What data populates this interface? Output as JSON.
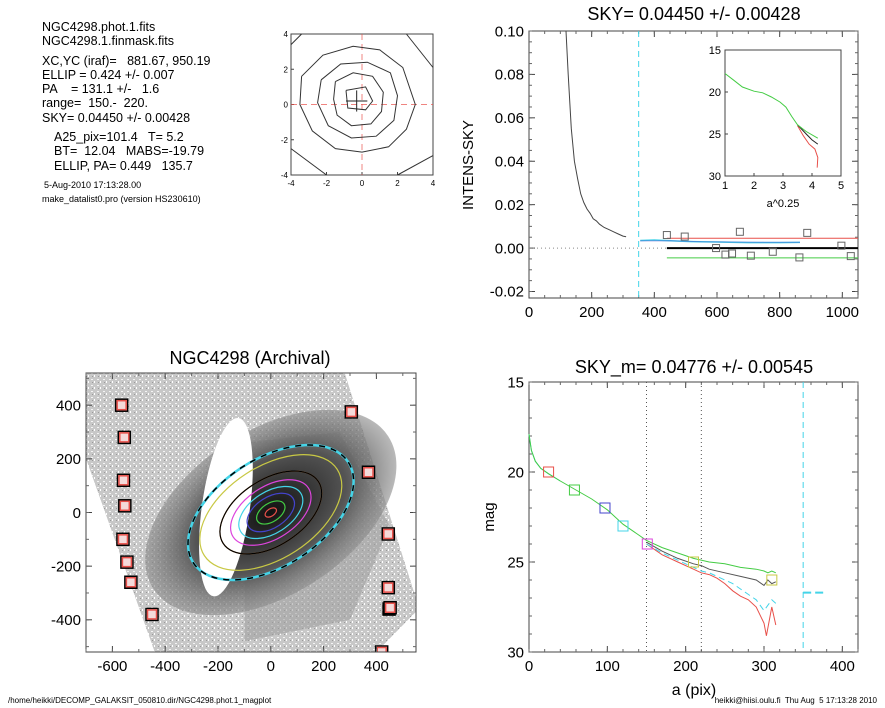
{
  "info_panel": {
    "files": [
      "NGC4298.phot.1.fits",
      "NGC4298.1.finmask.fits"
    ],
    "params": [
      "XC,YC (iraf)=   881.67, 950.19",
      "ELLIP = 0.424 +/- 0.007",
      "PA    = 131.1 +/-   1.6",
      "range=  150.-  220.",
      "SKY= 0.04450 +/- 0.00428"
    ],
    "results": [
      "A25_pix=101.4   T= 5.2",
      "BT=  12.04   MABS=-19.79",
      "ELLIP, PA= 0.449   135.7"
    ],
    "date": "5-Aug-2010 17:13:28.00",
    "program": "make_datalist0.pro (version HS230610)"
  },
  "footer": {
    "path": "/home/heikki/DECOMP_GALAKSIT_050810.dir/NGC4298.phot.1_magplot",
    "user_stamp": "heikki@hiisi.oulu.fi  Thu Aug  5 17:13:28 2010"
  },
  "colors": {
    "red": "#e8504a",
    "green": "#44cc44",
    "cyan": "#44d4e8",
    "blue": "#4444cc",
    "magenta": "#dd44dd",
    "yellow": "#c8c844",
    "orange": "#e88a30",
    "gray": "#555555",
    "black": "#000000"
  },
  "chart_data": [
    {
      "id": "center-contour",
      "type": "line",
      "title": "",
      "xlim": [
        -4,
        4
      ],
      "ylim": [
        -4,
        4
      ],
      "xticks": [
        "-4",
        "-2",
        "0",
        "2",
        "4"
      ],
      "yticks": [
        "-4",
        "-2",
        "0",
        "2",
        "4"
      ],
      "contours": [
        [
          [
            -0.9,
            0.8
          ],
          [
            0.2,
            1.0
          ],
          [
            0.6,
            0.2
          ],
          [
            0.2,
            -0.3
          ],
          [
            -0.8,
            -0.2
          ],
          [
            -0.9,
            0.8
          ]
        ],
        [
          [
            -1.5,
            1.3
          ],
          [
            -0.5,
            1.8
          ],
          [
            0.6,
            1.6
          ],
          [
            1.2,
            0.7
          ],
          [
            1.1,
            -0.4
          ],
          [
            0.5,
            -1.1
          ],
          [
            -0.6,
            -1.2
          ],
          [
            -1.4,
            -0.6
          ],
          [
            -1.6,
            0.3
          ],
          [
            -1.5,
            1.3
          ]
        ],
        [
          [
            -2.3,
            1.4
          ],
          [
            -1.2,
            2.3
          ],
          [
            0.3,
            2.4
          ],
          [
            1.6,
            1.8
          ],
          [
            2.0,
            0.5
          ],
          [
            1.8,
            -0.9
          ],
          [
            0.8,
            -1.8
          ],
          [
            -0.6,
            -1.9
          ],
          [
            -1.9,
            -1.2
          ],
          [
            -2.5,
            0.1
          ],
          [
            -2.3,
            1.4
          ]
        ],
        [
          [
            -3.4,
            1.6
          ],
          [
            -2.2,
            2.8
          ],
          [
            -0.5,
            3.3
          ],
          [
            1.0,
            3.1
          ],
          [
            2.3,
            2.1
          ],
          [
            3.0,
            0.0
          ],
          [
            2.5,
            -1.4
          ],
          [
            1.5,
            -2.4
          ],
          [
            0.0,
            -2.7
          ],
          [
            -1.5,
            -2.5
          ],
          [
            -2.8,
            -1.5
          ],
          [
            -3.5,
            0.0
          ],
          [
            -3.4,
            1.6
          ]
        ],
        [
          [
            -4,
            3.4
          ],
          [
            -3.4,
            4
          ]
        ],
        [
          [
            2.5,
            4
          ],
          [
            4,
            2.1
          ]
        ],
        [
          [
            -4,
            -2.5
          ],
          [
            -2.0,
            -4
          ]
        ],
        [
          [
            2.0,
            -4
          ],
          [
            4,
            -2.9
          ]
        ]
      ],
      "crosshair": [
        -0.3,
        0.2
      ]
    },
    {
      "id": "intens-sky",
      "type": "line",
      "title": "SKY= 0.04450 +/- 0.00428",
      "xlabel": "",
      "ylabel": "INTENS-SKY",
      "xlim": [
        0,
        1050
      ],
      "ylim": [
        -0.023,
        0.1
      ],
      "xticks": [
        "0",
        "200",
        "400",
        "600",
        "800",
        "1000"
      ],
      "yticks": [
        "-0.02",
        "0.00",
        "0.02",
        "0.04",
        "0.06",
        "0.08",
        "0.10"
      ],
      "profile": {
        "x": [
          118,
          125,
          135,
          145,
          155,
          165,
          175,
          185,
          195,
          205,
          215,
          225,
          240,
          255,
          270,
          285,
          300,
          310
        ],
        "y": [
          0.1,
          0.08,
          0.055,
          0.04,
          0.032,
          0.025,
          0.021,
          0.018,
          0.016,
          0.0135,
          0.0125,
          0.011,
          0.0095,
          0.0085,
          0.0075,
          0.0065,
          0.0055,
          0.0052
        ]
      },
      "sky_points": {
        "x": [
          440,
          497,
          597,
          627,
          648,
          673,
          708,
          778,
          863,
          888,
          997,
          1027
        ],
        "y": [
          0.006,
          0.0053,
          0.0,
          -0.003,
          -0.0025,
          0.0075,
          -0.0035,
          -0.0017,
          -0.0043,
          0.007,
          0.0011,
          -0.0037
        ]
      },
      "red_line": 0.0045,
      "black_line": 0.0,
      "green_line": -0.0045,
      "cyan_x": 350,
      "inset": {
        "xlim": [
          1,
          5
        ],
        "ylim": [
          15,
          30
        ],
        "xlabel": "a^0.25",
        "xticks": [
          "1",
          "2",
          "3",
          "4",
          "5"
        ],
        "yticks": [
          "15",
          "20",
          "25",
          "30"
        ],
        "green": {
          "x": [
            1.0,
            1.3,
            1.6,
            2.0,
            2.3,
            2.6,
            2.9,
            3.1,
            3.3,
            3.5,
            3.8,
            4.2
          ],
          "y": [
            17.8,
            18.6,
            19.4,
            19.9,
            20.1,
            20.6,
            21.2,
            21.8,
            22.9,
            23.9,
            24.7,
            25.5
          ]
        },
        "black": {
          "x": [
            3.5,
            3.8,
            4.0,
            4.2
          ],
          "y": [
            23.9,
            25.0,
            25.7,
            26.2
          ]
        },
        "red": {
          "x": [
            3.5,
            3.7,
            3.9,
            4.1,
            4.2,
            4.18
          ],
          "y": [
            24.0,
            25.2,
            26.2,
            26.8,
            27.8,
            29.0
          ]
        }
      }
    },
    {
      "id": "galaxy-image",
      "type": "scatter",
      "title": "NGC4298 (Archival)",
      "xlim": [
        -700,
        550
      ],
      "ylim": [
        -520,
        520
      ],
      "xticks": [
        "-600",
        "-400",
        "-200",
        "0",
        "200",
        "400"
      ],
      "yticks": [
        "-400",
        "-200",
        "0",
        "200",
        "400"
      ],
      "sky_boxes": {
        "x": [
          -565,
          -555,
          -558,
          -553,
          -560,
          -545,
          -530,
          -450,
          305,
          370,
          445,
          445,
          448,
          452,
          420
        ],
        "y": [
          400,
          280,
          120,
          25,
          -100,
          -185,
          -260,
          -380,
          375,
          150,
          -80,
          -280,
          -360,
          -355,
          -520
        ]
      },
      "ellipses": [
        {
          "a": 24,
          "color": "red"
        },
        {
          "a": 60,
          "color": "green"
        },
        {
          "a": 100,
          "color": "blue"
        },
        {
          "a": 135,
          "color": "cyan"
        },
        {
          "a": 170,
          "color": "magenta"
        },
        {
          "a": 215,
          "color": "orange"
        },
        {
          "a": 215,
          "color": "black"
        },
        {
          "a": 300,
          "color": "yellow"
        },
        {
          "a": 350,
          "color": "cyan"
        },
        {
          "a": 350,
          "color": "black"
        }
      ],
      "ellipse_pa_deg": 135.7,
      "ellipse_ratio": 0.58
    },
    {
      "id": "mag-profile",
      "type": "line",
      "title": "SKY_m=  0.04776 +/- 0.00545",
      "xlabel": "a (pix)",
      "ylabel": "mag",
      "xlim": [
        0,
        420
      ],
      "ylim": [
        30,
        15
      ],
      "xticks": [
        "0",
        "100",
        "200",
        "300",
        "400"
      ],
      "yticks": [
        "15",
        "20",
        "25",
        "30"
      ],
      "range_lines": [
        150,
        220
      ],
      "cyan_x": 350,
      "series": [
        {
          "name": "main",
          "color": "green",
          "x": [
            0,
            3,
            8,
            15,
            25,
            40,
            60,
            80,
            100,
            120,
            140,
            150,
            170,
            190,
            210,
            230,
            250,
            270,
            290,
            300,
            305,
            310,
            315
          ],
          "y": [
            17.9,
            18.8,
            19.4,
            19.8,
            20.1,
            20.5,
            21.0,
            21.5,
            22.1,
            22.9,
            23.5,
            23.8,
            24.2,
            24.5,
            24.8,
            25.0,
            25.1,
            25.3,
            25.4,
            25.5,
            25.6,
            25.5,
            25.6
          ]
        },
        {
          "name": "sky-nominal",
          "color": "gray",
          "x": [
            150,
            170,
            190,
            210,
            220,
            230,
            250,
            270,
            290,
            300,
            305,
            310,
            315
          ],
          "y": [
            23.9,
            24.4,
            24.8,
            25.1,
            25.2,
            25.4,
            25.6,
            25.8,
            26.0,
            26.3,
            26.0,
            26.2,
            26.1
          ]
        },
        {
          "name": "sky-plus",
          "color": "cyan",
          "dashed": true,
          "x": [
            150,
            170,
            190,
            210,
            220,
            230,
            250,
            260,
            270,
            280,
            290,
            300,
            305,
            310,
            315
          ],
          "y": [
            24.0,
            24.5,
            24.9,
            25.3,
            25.5,
            25.6,
            26.0,
            26.2,
            26.5,
            26.8,
            27.1,
            27.7,
            27.4,
            27.1,
            27.3
          ]
        },
        {
          "name": "sky-minus",
          "color": "red",
          "x": [
            150,
            170,
            190,
            210,
            220,
            230,
            240,
            250,
            260,
            270,
            280,
            290,
            300,
            303,
            310,
            315
          ],
          "y": [
            24.0,
            24.6,
            25.0,
            25.4,
            25.6,
            25.7,
            25.9,
            26.2,
            26.6,
            26.9,
            27.1,
            27.5,
            28.4,
            29.1,
            27.5,
            28.5
          ]
        }
      ],
      "markers": {
        "x": [
          25,
          58,
          97,
          120,
          151,
          210,
          310
        ],
        "y": [
          20.0,
          21.0,
          22.0,
          23.0,
          24.0,
          25.0,
          26.0
        ],
        "colors": [
          "red",
          "green",
          "blue",
          "cyan",
          "magenta",
          "yellow",
          "yellow"
        ]
      },
      "cyan_level": {
        "x": [
          350,
          380
        ],
        "y": 26.7
      }
    }
  ]
}
